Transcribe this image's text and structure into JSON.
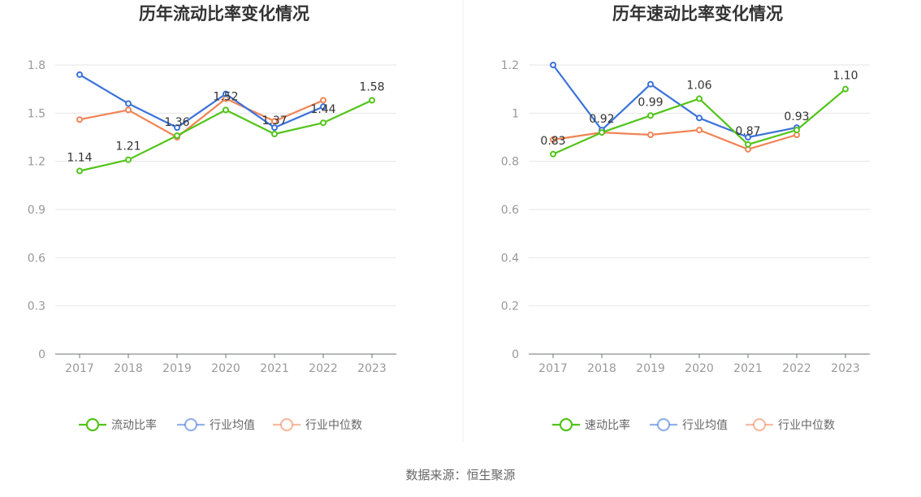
{
  "source_text": "数据来源：恒生聚源",
  "chart_data": [
    {
      "type": "line",
      "title": "历年流动比率变化情况",
      "categories": [
        "2017",
        "2018",
        "2019",
        "2020",
        "2021",
        "2022",
        "2023"
      ],
      "ylim": [
        0,
        1.8
      ],
      "yticks": [
        0,
        0.3,
        0.6,
        0.9,
        1.2,
        1.5,
        1.8
      ],
      "ytick_labels": [
        "0",
        "0.3",
        "0.6",
        "0.9",
        "1.2",
        "1.5",
        "1.8"
      ],
      "grid": true,
      "legend_position": "bottom-center",
      "series": [
        {
          "name": "流动比率",
          "color": "#52c41a",
          "values": [
            1.14,
            1.21,
            1.36,
            1.52,
            1.37,
            1.44,
            1.58
          ],
          "labels": [
            "1.14",
            "1.21",
            "1.36",
            "1.52",
            "1.37",
            "1.44",
            "1.58"
          ]
        },
        {
          "name": "行业均值",
          "color": "#3b73d9",
          "values": [
            1.74,
            1.56,
            1.41,
            1.62,
            1.41,
            1.54,
            null
          ]
        },
        {
          "name": "行业中位数",
          "color": "#f08455",
          "values": [
            1.46,
            1.52,
            1.35,
            1.59,
            1.45,
            1.58,
            null
          ]
        }
      ]
    },
    {
      "type": "line",
      "title": "历年速动比率变化情况",
      "categories": [
        "2017",
        "2018",
        "2019",
        "2020",
        "2021",
        "2022",
        "2023"
      ],
      "ylim": [
        0,
        1.2
      ],
      "yticks": [
        0,
        0.2,
        0.4,
        0.6,
        0.8,
        1.0,
        1.2
      ],
      "ytick_labels": [
        "0",
        "0.2",
        "0.4",
        "0.6",
        "0.8",
        "1",
        "1.2"
      ],
      "grid": true,
      "legend_position": "bottom-center",
      "series": [
        {
          "name": "速动比率",
          "color": "#52c41a",
          "values": [
            0.83,
            0.92,
            0.99,
            1.06,
            0.87,
            0.93,
            1.1
          ],
          "labels": [
            "0.83",
            "0.92",
            "0.99",
            "1.06",
            "0.87",
            "0.93",
            "1.10"
          ]
        },
        {
          "name": "行业均值",
          "color": "#3b73d9",
          "values": [
            1.2,
            0.93,
            1.12,
            0.98,
            0.9,
            0.94,
            null
          ]
        },
        {
          "name": "行业中位数",
          "color": "#f08455",
          "values": [
            0.89,
            0.92,
            0.91,
            0.93,
            0.85,
            0.91,
            null
          ]
        }
      ]
    }
  ]
}
